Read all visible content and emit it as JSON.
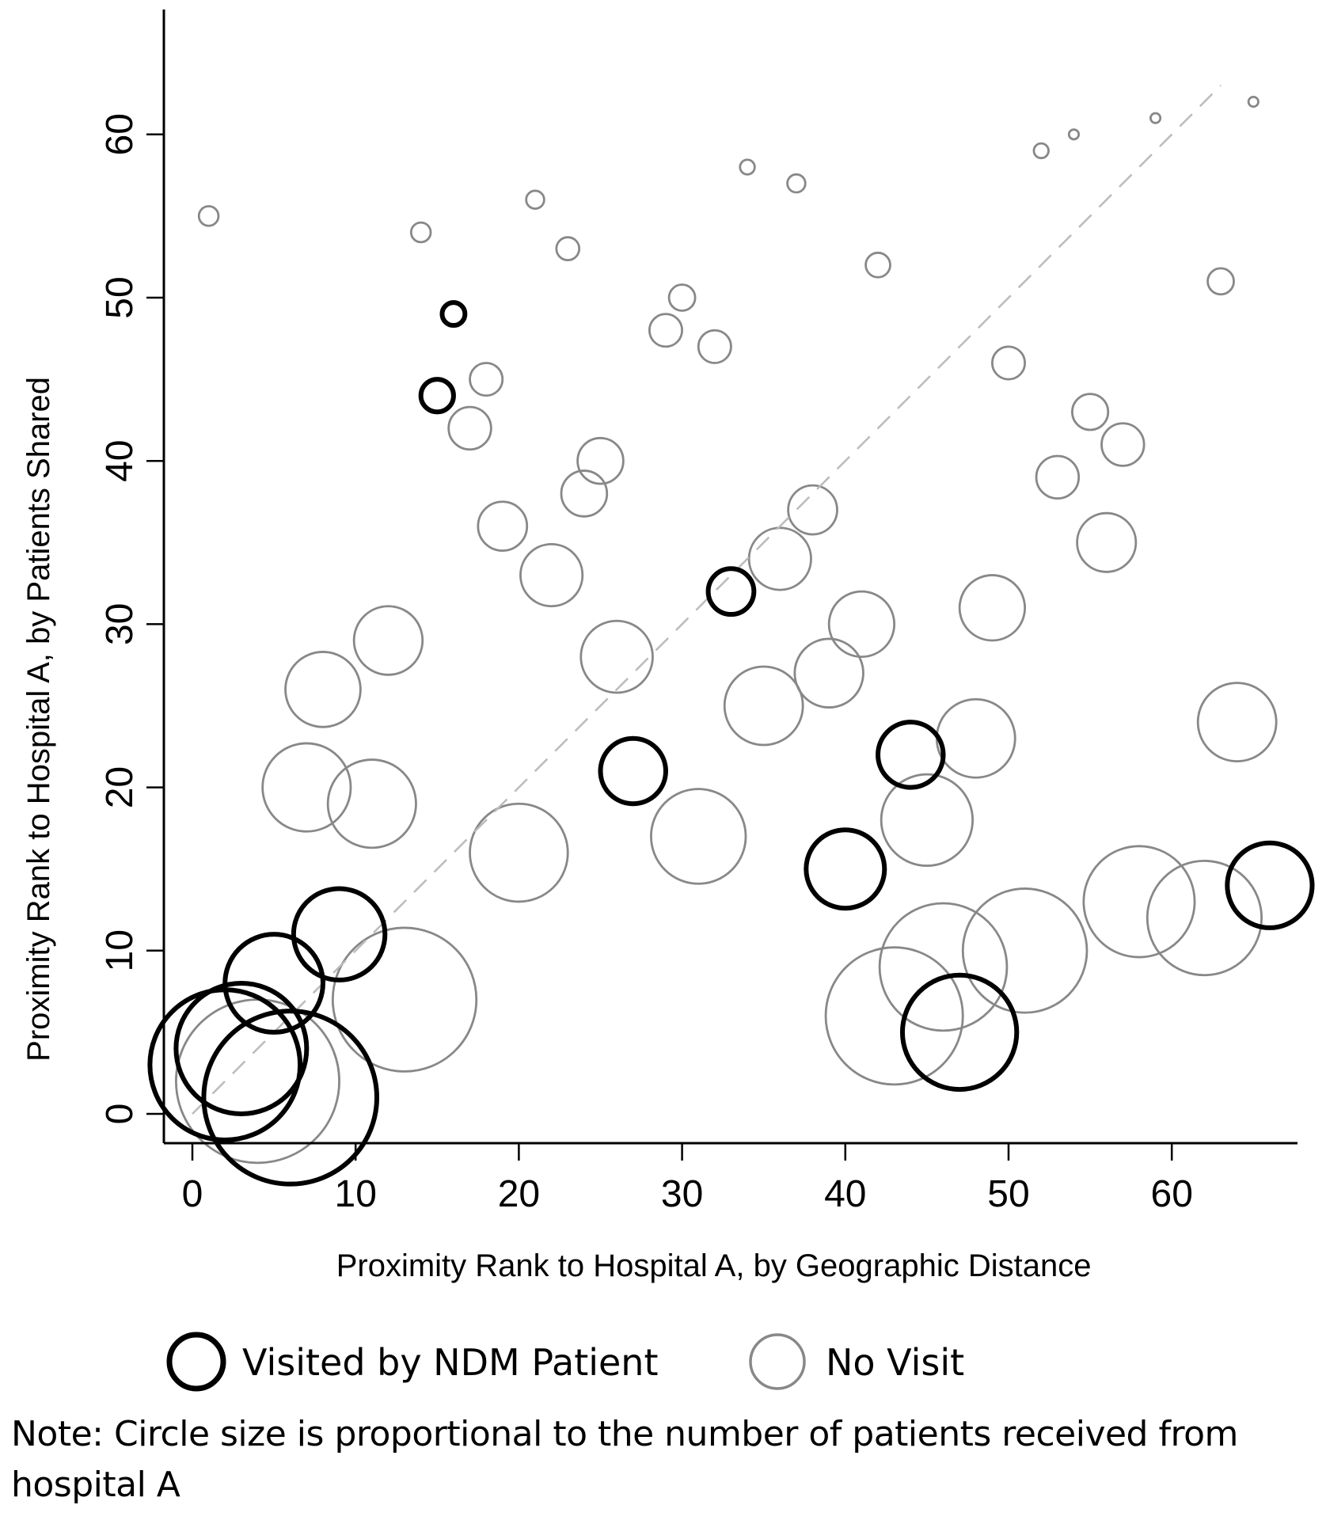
{
  "chart_data": {
    "type": "scatter",
    "title": "",
    "xlabel": "Proximity Rank to Hospital A, by Geographic Distance",
    "ylabel": "Proximity Rank to Hospital A, by Patients Shared",
    "xlim": [
      -2,
      68
    ],
    "ylim": [
      -2,
      68
    ],
    "xticks": [
      0,
      10,
      20,
      30,
      40,
      50,
      60
    ],
    "yticks": [
      0,
      10,
      20,
      30,
      40,
      50,
      60
    ],
    "grid": false,
    "reference_line": {
      "type": "diagonal",
      "from": [
        0,
        0
      ],
      "to": [
        63,
        63
      ],
      "style": "dashed",
      "color": "#bbbbbb"
    },
    "legend": {
      "placement": "bottom",
      "entries": [
        {
          "label": "Visited by NDM Patient",
          "color": "#000000"
        },
        {
          "label": "No Visit",
          "color": "#888888"
        }
      ]
    },
    "note": "Note: Circle size is proportional to the number of patients received from hospital A",
    "size_meaning": "relative number of patients received from hospital A (radius in rank units)",
    "series": [
      {
        "name": "Visited by NDM Patient",
        "color": "#000000",
        "points": [
          {
            "x": 16,
            "y": 49,
            "size": 0.7
          },
          {
            "x": 15,
            "y": 44,
            "size": 1.0
          },
          {
            "x": 33,
            "y": 32,
            "size": 1.4
          },
          {
            "x": 27,
            "y": 21,
            "size": 2.0
          },
          {
            "x": 44,
            "y": 22,
            "size": 2.0
          },
          {
            "x": 40,
            "y": 15,
            "size": 2.4
          },
          {
            "x": 66,
            "y": 14,
            "size": 2.6
          },
          {
            "x": 9,
            "y": 11,
            "size": 2.8
          },
          {
            "x": 5,
            "y": 8,
            "size": 3.0
          },
          {
            "x": 47,
            "y": 5,
            "size": 3.5
          },
          {
            "x": 3,
            "y": 4,
            "size": 4.0
          },
          {
            "x": 2,
            "y": 3,
            "size": 4.6
          },
          {
            "x": 6,
            "y": 1,
            "size": 5.3
          }
        ]
      },
      {
        "name": "No Visit",
        "color": "#888888",
        "points": [
          {
            "x": 1,
            "y": 55,
            "size": 0.6
          },
          {
            "x": 14,
            "y": 54,
            "size": 0.6
          },
          {
            "x": 21,
            "y": 56,
            "size": 0.55
          },
          {
            "x": 23,
            "y": 53,
            "size": 0.7
          },
          {
            "x": 34,
            "y": 58,
            "size": 0.45
          },
          {
            "x": 37,
            "y": 57,
            "size": 0.55
          },
          {
            "x": 42,
            "y": 52,
            "size": 0.75
          },
          {
            "x": 52,
            "y": 59,
            "size": 0.45
          },
          {
            "x": 54,
            "y": 60,
            "size": 0.3
          },
          {
            "x": 59,
            "y": 61,
            "size": 0.3
          },
          {
            "x": 65,
            "y": 62,
            "size": 0.3
          },
          {
            "x": 63,
            "y": 51,
            "size": 0.8
          },
          {
            "x": 30,
            "y": 50,
            "size": 0.8
          },
          {
            "x": 29,
            "y": 48,
            "size": 1.0
          },
          {
            "x": 32,
            "y": 47,
            "size": 1.0
          },
          {
            "x": 18,
            "y": 45,
            "size": 1.0
          },
          {
            "x": 17,
            "y": 42,
            "size": 1.3
          },
          {
            "x": 50,
            "y": 46,
            "size": 1.0
          },
          {
            "x": 55,
            "y": 43,
            "size": 1.1
          },
          {
            "x": 57,
            "y": 41,
            "size": 1.3
          },
          {
            "x": 53,
            "y": 39,
            "size": 1.3
          },
          {
            "x": 25,
            "y": 40,
            "size": 1.4
          },
          {
            "x": 24,
            "y": 38,
            "size": 1.4
          },
          {
            "x": 19,
            "y": 36,
            "size": 1.5
          },
          {
            "x": 38,
            "y": 37,
            "size": 1.5
          },
          {
            "x": 36,
            "y": 34,
            "size": 1.9
          },
          {
            "x": 22,
            "y": 33,
            "size": 1.9
          },
          {
            "x": 56,
            "y": 35,
            "size": 1.8
          },
          {
            "x": 49,
            "y": 31,
            "size": 2.0
          },
          {
            "x": 41,
            "y": 30,
            "size": 2.0
          },
          {
            "x": 12,
            "y": 29,
            "size": 2.1
          },
          {
            "x": 26,
            "y": 28,
            "size": 2.2
          },
          {
            "x": 39,
            "y": 27,
            "size": 2.1
          },
          {
            "x": 8,
            "y": 26,
            "size": 2.3
          },
          {
            "x": 35,
            "y": 25,
            "size": 2.4
          },
          {
            "x": 64,
            "y": 24,
            "size": 2.4
          },
          {
            "x": 48,
            "y": 23,
            "size": 2.4
          },
          {
            "x": 7,
            "y": 20,
            "size": 2.7
          },
          {
            "x": 11,
            "y": 19,
            "size": 2.7
          },
          {
            "x": 45,
            "y": 18,
            "size": 2.8
          },
          {
            "x": 31,
            "y": 17,
            "size": 2.9
          },
          {
            "x": 20,
            "y": 16,
            "size": 3.0
          },
          {
            "x": 58,
            "y": 13,
            "size": 3.4
          },
          {
            "x": 62,
            "y": 12,
            "size": 3.5
          },
          {
            "x": 51,
            "y": 10,
            "size": 3.8
          },
          {
            "x": 46,
            "y": 9,
            "size": 3.9
          },
          {
            "x": 13,
            "y": 7,
            "size": 4.4
          },
          {
            "x": 43,
            "y": 6,
            "size": 4.2
          },
          {
            "x": 4,
            "y": 2,
            "size": 5.0
          }
        ]
      }
    ]
  }
}
